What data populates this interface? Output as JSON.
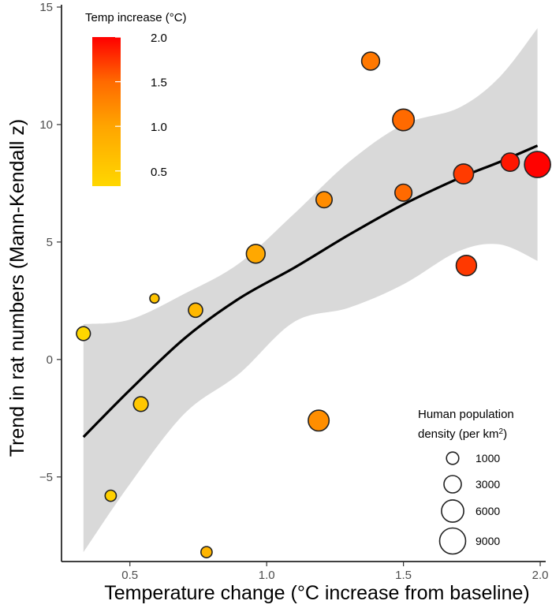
{
  "chart_data": {
    "type": "scatter",
    "title": "",
    "xlabel": "Temperature change (°C increase from baseline)",
    "ylabel": "Trend in rat numbers (Mann-Kendall z)",
    "xlim": [
      0.25,
      2.02
    ],
    "ylim": [
      -8.6,
      15.1
    ],
    "x_ticks": [
      {
        "value": 0.5,
        "label": "0.5"
      },
      {
        "value": 1.0,
        "label": "1.0"
      },
      {
        "value": 1.5,
        "label": "1.5"
      },
      {
        "value": 2.0,
        "label": "2.0"
      }
    ],
    "y_ticks": [
      {
        "value": -5,
        "label": "−5"
      },
      {
        "value": 0,
        "label": "0"
      },
      {
        "value": 5,
        "label": "5"
      },
      {
        "value": 10,
        "label": "10"
      },
      {
        "value": 15,
        "label": "15"
      }
    ],
    "grid": false,
    "points": [
      {
        "x": 0.33,
        "y": 1.1,
        "density": 1500
      },
      {
        "x": 0.43,
        "y": -5.8,
        "density": 700
      },
      {
        "x": 0.54,
        "y": -1.9,
        "density": 1800
      },
      {
        "x": 0.59,
        "y": 2.6,
        "density": 300
      },
      {
        "x": 0.74,
        "y": 2.1,
        "density": 1600
      },
      {
        "x": 0.78,
        "y": -8.2,
        "density": 700
      },
      {
        "x": 0.96,
        "y": 4.5,
        "density": 3800
      },
      {
        "x": 1.19,
        "y": -2.6,
        "density": 5000
      },
      {
        "x": 1.21,
        "y": 6.8,
        "density": 2400
      },
      {
        "x": 1.38,
        "y": 12.7,
        "density": 3300
      },
      {
        "x": 1.5,
        "y": 7.1,
        "density": 2800
      },
      {
        "x": 1.5,
        "y": 10.2,
        "density": 5500
      },
      {
        "x": 1.72,
        "y": 7.9,
        "density": 4400
      },
      {
        "x": 1.73,
        "y": 4.0,
        "density": 4700
      },
      {
        "x": 1.89,
        "y": 8.4,
        "density": 3500
      },
      {
        "x": 1.99,
        "y": 8.3,
        "density": 9000
      }
    ],
    "trend_line": {
      "x": [
        0.33,
        0.5,
        0.7,
        0.9,
        1.1,
        1.3,
        1.5,
        1.7,
        1.85,
        1.99
      ],
      "y": [
        -3.3,
        -1.3,
        0.9,
        2.6,
        3.9,
        5.3,
        6.6,
        7.7,
        8.4,
        9.1
      ]
    },
    "confidence_band": {
      "x": [
        0.33,
        0.5,
        0.7,
        0.9,
        1.1,
        1.3,
        1.5,
        1.7,
        1.85,
        1.99
      ],
      "upper": [
        1.5,
        1.7,
        2.8,
        4.1,
        6.2,
        8.4,
        10.0,
        10.7,
        12.0,
        14.1
      ],
      "lower": [
        -8.2,
        -5.3,
        -2.3,
        -0.6,
        1.6,
        2.2,
        3.2,
        4.6,
        4.9,
        4.2
      ]
    },
    "color_legend": {
      "title": "Temp increase (°C)",
      "min": 0.33,
      "max": 2.0,
      "ticks": [
        {
          "value": 0.5,
          "label": "0.5"
        },
        {
          "value": 1.0,
          "label": "1.0"
        },
        {
          "value": 1.5,
          "label": "1.5"
        },
        {
          "value": 2.0,
          "label": "2.0"
        }
      ],
      "colors": [
        "#FFD700",
        "#FFA500",
        "#FF6A00",
        "#FF0000"
      ],
      "placement": "top-left"
    },
    "size_legend": {
      "title_line1": "Human population",
      "title_line2": "density (per km",
      "title_superscript": "2",
      "title_close": ")",
      "entries": [
        {
          "value": 1000,
          "label": "1000"
        },
        {
          "value": 3000,
          "label": "3000"
        },
        {
          "value": 6000,
          "label": "6000"
        },
        {
          "value": 9000,
          "label": "9000"
        }
      ],
      "placement": "bottom-right"
    },
    "style": {
      "point_stroke": "#222222",
      "trend_color": "#000000",
      "band_color": "#d9d9d9",
      "axis_color": "#000000"
    }
  }
}
